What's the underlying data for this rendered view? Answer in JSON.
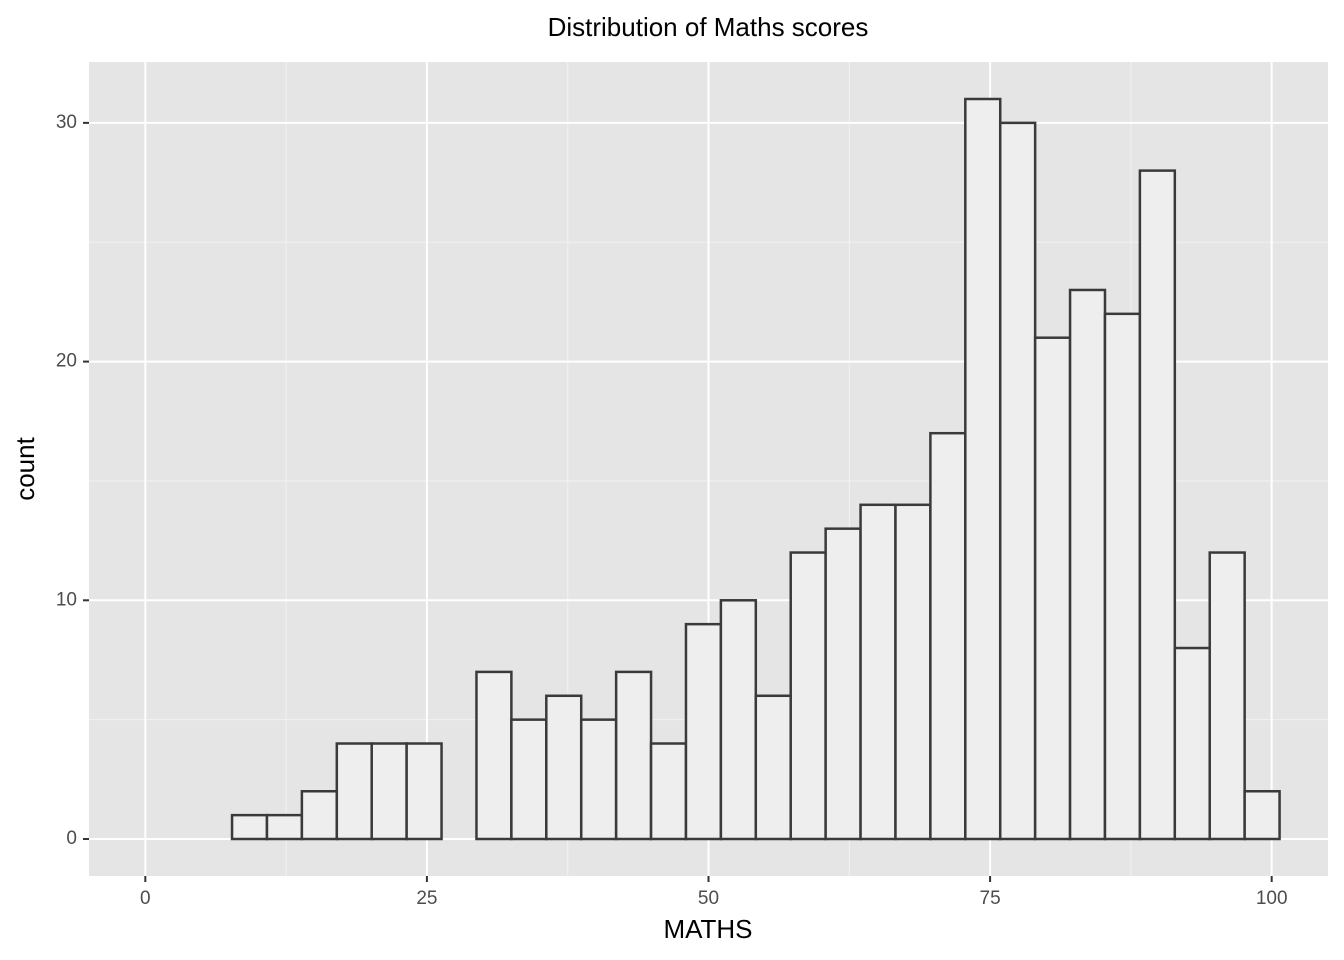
{
  "chart_data": {
    "type": "histogram",
    "title": "Distribution of Maths scores",
    "x_label": "MATHS",
    "y_label": "count",
    "bins": [
      7.7,
      10.8,
      13.9,
      17.0,
      20.1,
      23.2,
      26.3,
      29.4,
      32.5,
      35.6,
      38.7,
      41.8,
      44.9,
      48.0,
      51.1,
      54.2,
      57.3,
      60.4,
      63.5,
      66.6,
      69.7,
      72.8,
      75.9,
      79.0,
      82.1,
      85.2,
      88.3,
      91.4,
      94.5,
      97.6,
      100.7
    ],
    "values": [
      1,
      1,
      2,
      4,
      4,
      4,
      0,
      7,
      5,
      6,
      5,
      7,
      4,
      9,
      10,
      6,
      12,
      13,
      14,
      14,
      17,
      31,
      30,
      21,
      23,
      22,
      28,
      8,
      12,
      2
    ],
    "color": "#eeeeee",
    "edge_color": "#3a3a3a",
    "xlim": [
      -5,
      105
    ],
    "ylim": [
      -1.55,
      32.55
    ],
    "xticks": [
      0,
      25,
      50,
      75,
      100
    ],
    "yticks": [
      0,
      10,
      20,
      30
    ],
    "x_minor_ticks": [
      12.5,
      37.5,
      62.5,
      87.5
    ],
    "y_minor_ticks": [
      5,
      15,
      25
    ],
    "grid": true
  }
}
